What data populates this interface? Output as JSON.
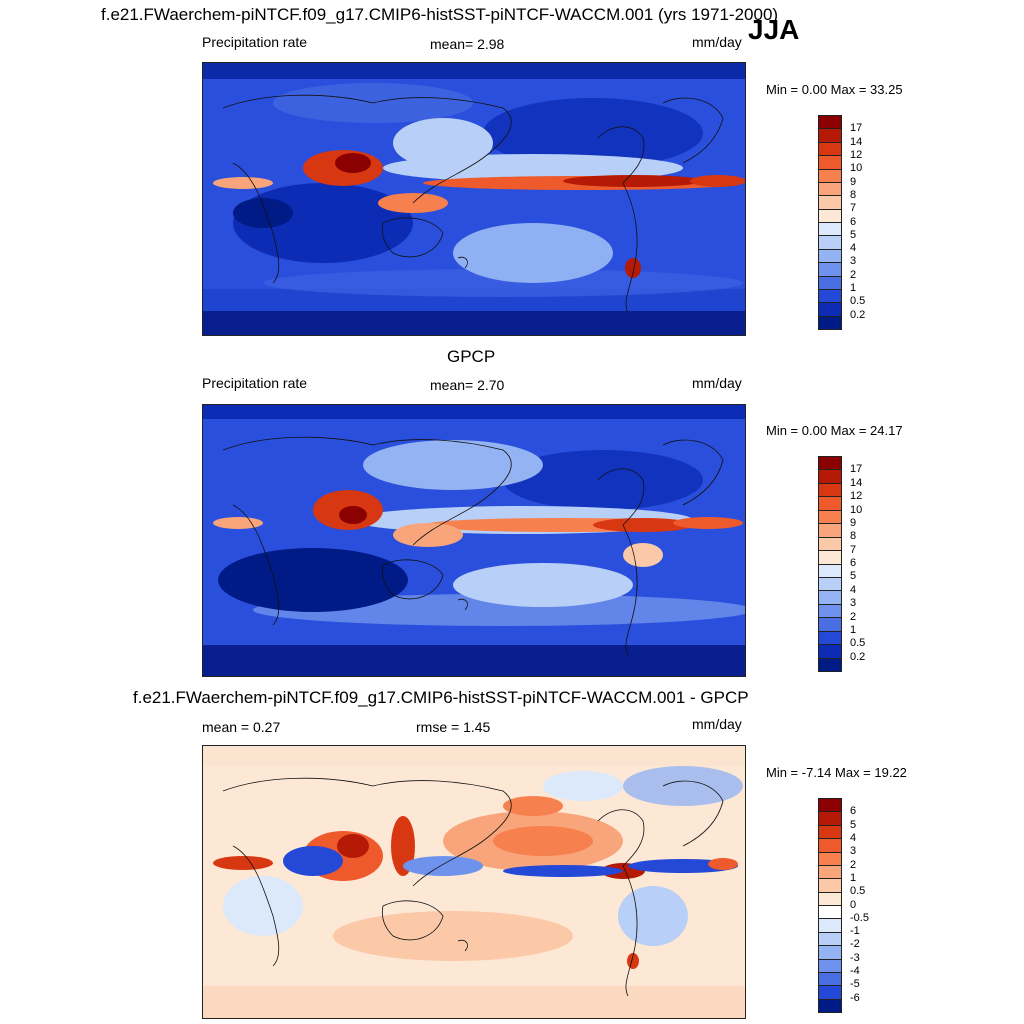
{
  "season": "JJA",
  "panels": [
    {
      "title": "f.e21.FWaerchem-piNTCF.f09_g17.CMIP6-histSST-piNTCF-WACCM.001 (yrs 1971-2000)",
      "left_label": "Precipitation rate",
      "center_label": "mean=   2.98",
      "units": "mm/day",
      "minmax": "Min =   0.00 Max =  33.25",
      "colorbar_labels": [
        "17",
        "14",
        "12",
        "10",
        "9",
        "8",
        "7",
        "6",
        "5",
        "4",
        "3",
        "2",
        "1",
        "0.5",
        "0.2"
      ],
      "colorbar_colors": [
        "#8b0000",
        "#b41a05",
        "#d73812",
        "#ee5a2b",
        "#f7804f",
        "#f9a57b",
        "#fbc9a8",
        "#fde8d6",
        "#dbe9fb",
        "#b8cff7",
        "#94b3f2",
        "#6f92ec",
        "#4a6fe3",
        "#2449d6",
        "#0c2cb5",
        "#001a86"
      ]
    },
    {
      "title": "GPCP",
      "left_label": "Precipitation rate",
      "center_label": "mean=   2.70",
      "units": "mm/day",
      "minmax": "Min =   0.00 Max =  24.17",
      "colorbar_labels": [
        "17",
        "14",
        "12",
        "10",
        "9",
        "8",
        "7",
        "6",
        "5",
        "4",
        "3",
        "2",
        "1",
        "0.5",
        "0.2"
      ],
      "colorbar_colors": [
        "#8b0000",
        "#b41a05",
        "#d73812",
        "#ee5a2b",
        "#f7804f",
        "#f9a57b",
        "#fbc9a8",
        "#fde8d6",
        "#dbe9fb",
        "#b8cff7",
        "#94b3f2",
        "#6f92ec",
        "#4a6fe3",
        "#2449d6",
        "#0c2cb5",
        "#001a86"
      ]
    },
    {
      "title": "f.e21.FWaerchem-piNTCF.f09_g17.CMIP6-histSST-piNTCF-WACCM.001 - GPCP",
      "left_label": "mean =   0.27",
      "center_label": "rmse =   1.45",
      "units": "mm/day",
      "minmax": "Min =  -7.14 Max =  19.22",
      "colorbar_labels": [
        "6",
        "5",
        "4",
        "3",
        "2",
        "1",
        "0.5",
        "0",
        "-0.5",
        "-1",
        "-2",
        "-3",
        "-4",
        "-5",
        "-6"
      ],
      "colorbar_colors": [
        "#8b0000",
        "#b41a05",
        "#d73812",
        "#ee5a2b",
        "#f7804f",
        "#f9a57b",
        "#fbc9a8",
        "#fde8d6",
        "#ffffff",
        "#dbe9fb",
        "#b8cff7",
        "#94b3f2",
        "#6f92ec",
        "#4a6fe3",
        "#2449d6",
        "#001a86"
      ]
    }
  ]
}
